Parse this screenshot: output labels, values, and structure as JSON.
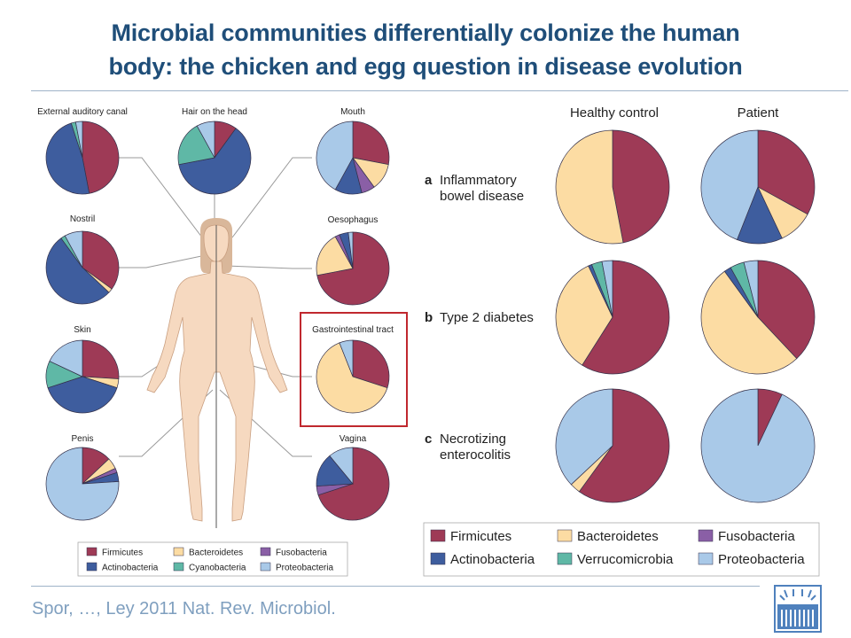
{
  "slide": {
    "title_line1": "Microbial communities differentially colonize the human",
    "title_line2": "body: the chicken and egg question in disease evolution",
    "citation": "Spor, …, Ley 2011 Nat. Rev. Microbiol."
  },
  "colors": {
    "Firmicutes": "#9e3a56",
    "Bacteroidetes": "#fcdca3",
    "Fusobacteria": "#8a5fa6",
    "Actinobacteria": "#3e5d9e",
    "Cyanobacteria": "#5fb8a6",
    "Verrucomicrobia": "#5fb8a6",
    "Proteobacteria": "#a9c9e8",
    "highlight": "#c0282e",
    "title": "#1f4e79"
  },
  "body_sites": {
    "order": [
      "Firmicutes",
      "Bacteroidetes",
      "Fusobacteria",
      "Actinobacteria",
      "Cyanobacteria",
      "Proteobacteria"
    ],
    "sites": [
      {
        "label": "External auditory canal",
        "values": {
          "Firmicutes": 47,
          "Bacteroidetes": 0,
          "Fusobacteria": 0,
          "Actinobacteria": 48,
          "Cyanobacteria": 2,
          "Proteobacteria": 3
        }
      },
      {
        "label": "Hair on the head",
        "values": {
          "Firmicutes": 10,
          "Bacteroidetes": 0,
          "Fusobacteria": 0,
          "Actinobacteria": 62,
          "Cyanobacteria": 20,
          "Proteobacteria": 8
        }
      },
      {
        "label": "Mouth",
        "values": {
          "Firmicutes": 28,
          "Bacteroidetes": 12,
          "Fusobacteria": 6,
          "Actinobacteria": 12,
          "Cyanobacteria": 0,
          "Proteobacteria": 42
        }
      },
      {
        "label": "Nostril",
        "values": {
          "Firmicutes": 35,
          "Bacteroidetes": 2,
          "Fusobacteria": 0,
          "Actinobacteria": 53,
          "Cyanobacteria": 2,
          "Proteobacteria": 8
        }
      },
      {
        "label": "Oesophagus",
        "values": {
          "Firmicutes": 72,
          "Bacteroidetes": 20,
          "Fusobacteria": 2,
          "Actinobacteria": 4,
          "Cyanobacteria": 0,
          "Proteobacteria": 2
        }
      },
      {
        "label": "Skin",
        "values": {
          "Firmicutes": 26,
          "Bacteroidetes": 4,
          "Fusobacteria": 0,
          "Actinobacteria": 40,
          "Cyanobacteria": 12,
          "Proteobacteria": 18
        }
      },
      {
        "label": "Gastrointestinal tract",
        "values": {
          "Firmicutes": 30,
          "Bacteroidetes": 64,
          "Fusobacteria": 0,
          "Actinobacteria": 0,
          "Cyanobacteria": 0,
          "Proteobacteria": 6
        }
      },
      {
        "label": "Penis",
        "values": {
          "Firmicutes": 13,
          "Bacteroidetes": 5,
          "Fusobacteria": 2,
          "Actinobacteria": 4,
          "Cyanobacteria": 0,
          "Proteobacteria": 76
        }
      },
      {
        "label": "Vagina",
        "values": {
          "Firmicutes": 70,
          "Bacteroidetes": 0,
          "Fusobacteria": 4,
          "Actinobacteria": 15,
          "Cyanobacteria": 0,
          "Proteobacteria": 11
        }
      }
    ],
    "legend": [
      "Firmicutes",
      "Bacteroidetes",
      "Fusobacteria",
      "Actinobacteria",
      "Cyanobacteria",
      "Proteobacteria"
    ]
  },
  "disease": {
    "columns": [
      "Healthy control",
      "Patient"
    ],
    "order": [
      "Firmicutes",
      "Bacteroidetes",
      "Fusobacteria",
      "Actinobacteria",
      "Verrucomicrobia",
      "Proteobacteria"
    ],
    "conditions": [
      {
        "letter": "a",
        "line1": "Inflammatory",
        "line2": "bowel disease",
        "healthy": {
          "Firmicutes": 47,
          "Bacteroidetes": 53,
          "Fusobacteria": 0,
          "Actinobacteria": 0,
          "Verrucomicrobia": 0,
          "Proteobacteria": 0
        },
        "patient": {
          "Firmicutes": 33,
          "Bacteroidetes": 10,
          "Fusobacteria": 0,
          "Actinobacteria": 13,
          "Verrucomicrobia": 0,
          "Proteobacteria": 44
        }
      },
      {
        "letter": "b",
        "line1": "Type 2 diabetes",
        "line2": "",
        "healthy": {
          "Firmicutes": 59,
          "Bacteroidetes": 34,
          "Fusobacteria": 0,
          "Actinobacteria": 1,
          "Verrucomicrobia": 3,
          "Proteobacteria": 3
        },
        "patient": {
          "Firmicutes": 38,
          "Bacteroidetes": 52,
          "Fusobacteria": 0,
          "Actinobacteria": 2,
          "Verrucomicrobia": 4,
          "Proteobacteria": 4
        }
      },
      {
        "letter": "c",
        "line1": "Necrotizing",
        "line2": "enterocolitis",
        "healthy": {
          "Firmicutes": 60,
          "Bacteroidetes": 3,
          "Fusobacteria": 0,
          "Actinobacteria": 0,
          "Verrucomicrobia": 0,
          "Proteobacteria": 37
        },
        "patient": {
          "Firmicutes": 7,
          "Bacteroidetes": 0,
          "Fusobacteria": 0,
          "Actinobacteria": 0,
          "Verrucomicrobia": 0,
          "Proteobacteria": 93
        }
      }
    ],
    "legend": [
      "Firmicutes",
      "Bacteroidetes",
      "Fusobacteria",
      "Actinobacteria",
      "Verrucomicrobia",
      "Proteobacteria"
    ]
  }
}
